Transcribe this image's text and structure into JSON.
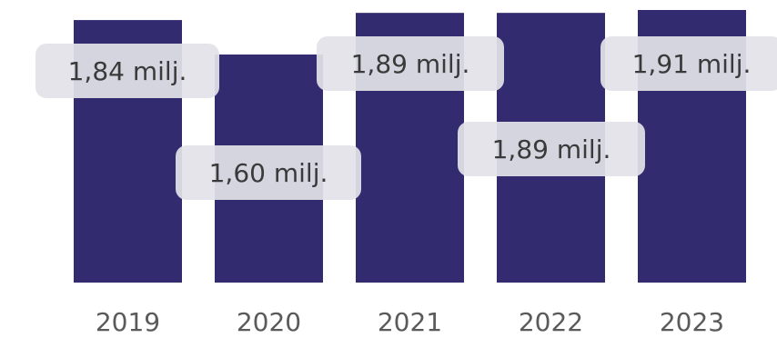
{
  "chart_data": {
    "type": "bar",
    "categories": [
      "2019",
      "2020",
      "2021",
      "2022",
      "2023"
    ],
    "values": [
      1.84,
      1.6,
      1.89,
      1.89,
      1.91
    ],
    "data_labels": [
      "1,84 milj.",
      "1,60 milj.",
      "1,89 milj.",
      "1,89 milj.",
      "1,91 milj."
    ],
    "bar_color": "#332b70",
    "label_box_color": "#e2e2e8",
    "label_text_color": "#3a3a3a",
    "axis_text_color": "#5a5a5a",
    "title": "",
    "xlabel": "",
    "ylabel": "",
    "grid": false
  }
}
